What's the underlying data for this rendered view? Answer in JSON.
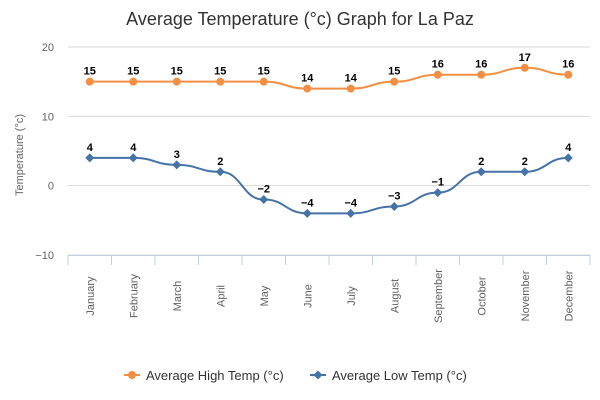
{
  "chart_data": {
    "type": "line",
    "title": "Average Temperature (°c) Graph for La Paz",
    "xlabel": "",
    "ylabel": "Temperature (°c)",
    "ylim": [
      -10,
      20
    ],
    "yticks": [
      -10,
      0,
      10,
      20
    ],
    "grid": true,
    "legend_position": "bottom",
    "categories": [
      "January",
      "February",
      "March",
      "April",
      "May",
      "June",
      "July",
      "August",
      "September",
      "October",
      "November",
      "December"
    ],
    "series": [
      {
        "name": "Average High Temp (°c)",
        "color": "#f28f43",
        "marker": "circle",
        "values": [
          15,
          15,
          15,
          15,
          15,
          14,
          14,
          15,
          16,
          16,
          17,
          16
        ]
      },
      {
        "name": "Average Low Temp (°c)",
        "color": "#4572a7",
        "marker": "diamond",
        "values": [
          4,
          4,
          3,
          2,
          -2,
          -4,
          -4,
          -3,
          -1,
          2,
          2,
          4
        ]
      }
    ]
  }
}
